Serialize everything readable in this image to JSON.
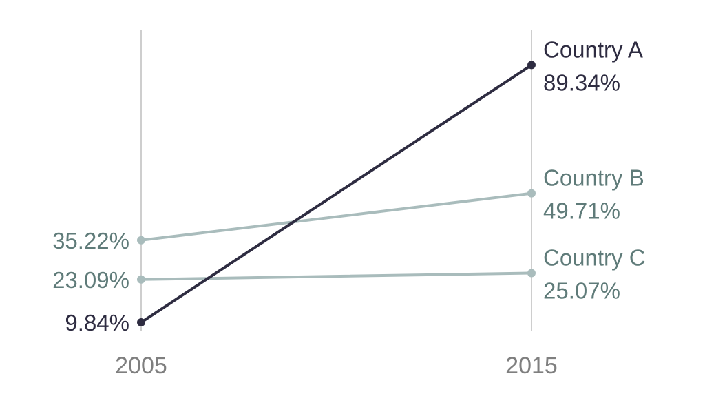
{
  "chart_data": {
    "type": "line",
    "subtype": "slope",
    "title": "",
    "xlabel": "",
    "ylabel": "",
    "x": [
      "2005",
      "2015"
    ],
    "ylim": [
      0,
      100
    ],
    "grid": "vertical lines at each year",
    "legend": "none (series labeled at right end)",
    "series": [
      {
        "name": "Country A",
        "values": [
          9.84,
          89.34
        ],
        "labels": [
          "9.84%",
          "89.34%"
        ],
        "color": "#2e2c41",
        "label_color": "#2e2c41"
      },
      {
        "name": "Country B",
        "values": [
          35.22,
          49.71
        ],
        "labels": [
          "35.22%",
          "49.71%"
        ],
        "color": "#a9bcbc",
        "label_color": "#5f7b79"
      },
      {
        "name": "Country C",
        "values": [
          23.09,
          25.07
        ],
        "labels": [
          "23.09%",
          "25.07%"
        ],
        "color": "#a9bcbc",
        "label_color": "#5f7b79"
      }
    ]
  },
  "colors": {
    "gridline": "#b3b3b3",
    "tick_label": "#7f7f7f"
  }
}
